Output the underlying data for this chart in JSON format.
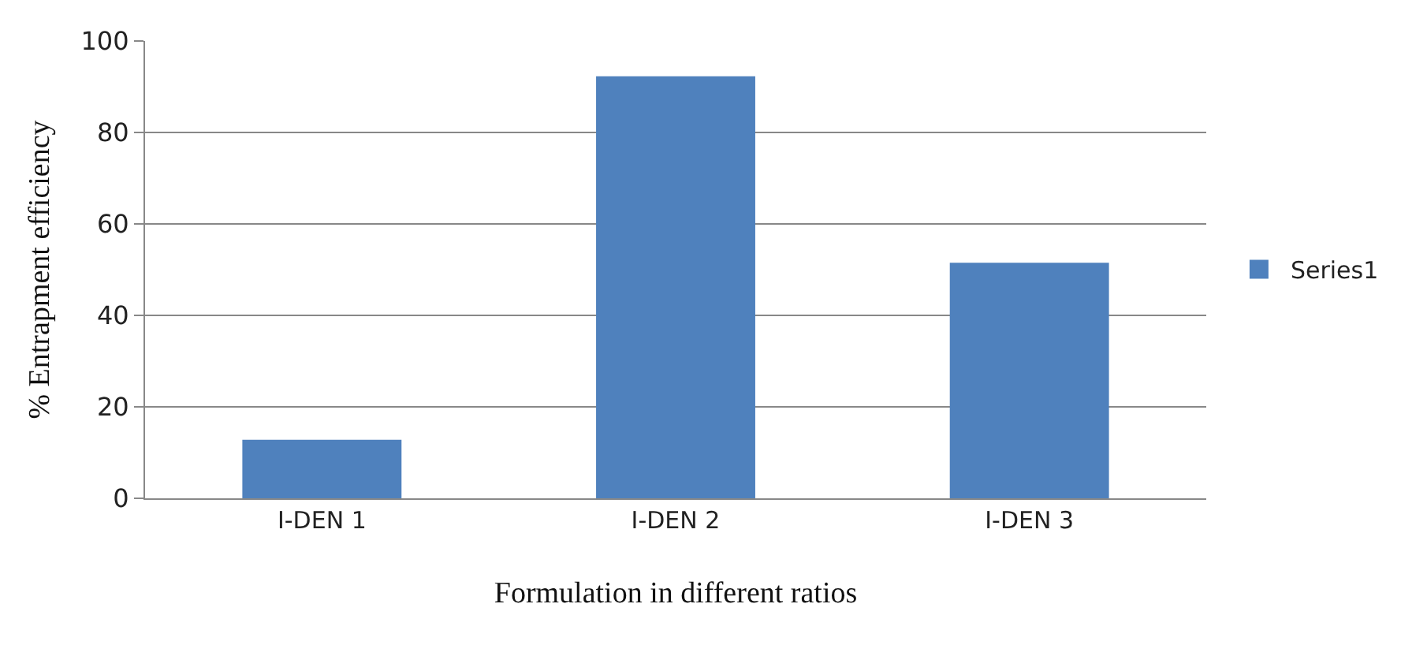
{
  "chart_data": {
    "type": "bar",
    "xlabel": "Formulation in different ratios",
    "ylabel": "% Entrapment efficiency",
    "categories": [
      "I-DEN 1",
      "I-DEN 2",
      "I-DEN 3"
    ],
    "series": [
      {
        "name": "Series1",
        "color": "#4f81bd",
        "values": [
          12.8,
          92.3,
          51.5
        ]
      }
    ],
    "ylim": [
      0,
      100
    ],
    "yticks": [
      0,
      20,
      40,
      60,
      80,
      100
    ],
    "grid": "y",
    "legend": "right"
  }
}
